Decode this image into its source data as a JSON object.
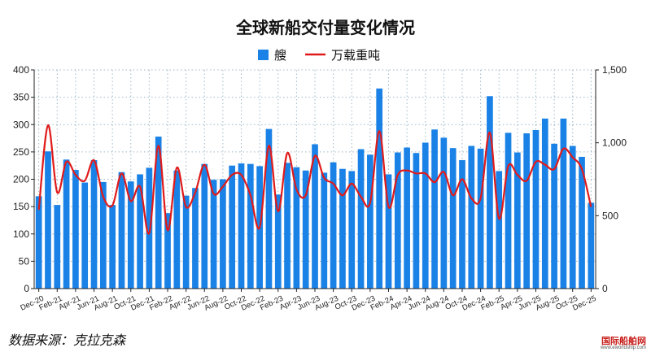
{
  "chart_data": {
    "type": "bar",
    "title": "全球新船交付量变化情况",
    "legend": {
      "position": "top-center",
      "bar_label": "艘",
      "line_label": "万载重吨"
    },
    "colors": {
      "bar": "#1a82e6",
      "line": "#e01a1a",
      "grid": "#9db8c8"
    },
    "grid": true,
    "left_axis": {
      "ylim": [
        0,
        400
      ],
      "ticks": [
        "0",
        "50",
        "100",
        "150",
        "200",
        "250",
        "300",
        "350",
        "400"
      ]
    },
    "right_axis": {
      "ylim": [
        0,
        1500
      ],
      "ticks": [
        "0",
        "500",
        "1,000",
        "1,500"
      ]
    },
    "x_tick_labels": [
      "Dec-20",
      "Feb-21",
      "Apr-21",
      "Jun-21",
      "Aug-21",
      "Oct-21",
      "Dec-21",
      "Feb-22",
      "Apr-22",
      "Jun-22",
      "Aug-22",
      "Oct-22",
      "Dec-22",
      "Feb-23",
      "Apr-23",
      "Jun-23",
      "Aug-23",
      "Oct-23",
      "Dec-23",
      "Feb-24",
      "Apr-24",
      "Jun-24",
      "Aug-24",
      "Oct-24",
      "Dec-24",
      "Feb-25",
      "Apr-25",
      "Jun-25",
      "Aug-25",
      "Oct-25",
      "Dec-25"
    ],
    "series": [
      {
        "name": "艘",
        "type": "bar",
        "axis": "left",
        "values": [
          169,
          251,
          153,
          236,
          217,
          194,
          235,
          195,
          153,
          213,
          196,
          209,
          221,
          278,
          138,
          216,
          170,
          184,
          228,
          199,
          200,
          225,
          229,
          228,
          224,
          292,
          172,
          230,
          222,
          216,
          264,
          212,
          231,
          219,
          215,
          255,
          245,
          366,
          209,
          249,
          258,
          248,
          267,
          291,
          276,
          257,
          235,
          261,
          256,
          352,
          215,
          285,
          249,
          284,
          290,
          311,
          265,
          311,
          261,
          241,
          157
        ]
      },
      {
        "name": "万载重吨",
        "type": "line",
        "axis": "right",
        "values": [
          540,
          1120,
          660,
          870,
          780,
          740,
          880,
          630,
          570,
          790,
          600,
          700,
          380,
          980,
          400,
          830,
          560,
          660,
          850,
          650,
          700,
          780,
          780,
          640,
          420,
          980,
          530,
          930,
          680,
          640,
          910,
          760,
          720,
          640,
          720,
          630,
          590,
          1080,
          560,
          780,
          810,
          790,
          790,
          730,
          800,
          640,
          750,
          620,
          620,
          1070,
          480,
          840,
          780,
          740,
          870,
          850,
          820,
          960,
          900,
          820,
          560
        ]
      }
    ]
  },
  "footer": {
    "source": "数据来源：克拉克森",
    "logo_main": "国际船舶网",
    "logo_sub": "www.eworldship.com"
  }
}
